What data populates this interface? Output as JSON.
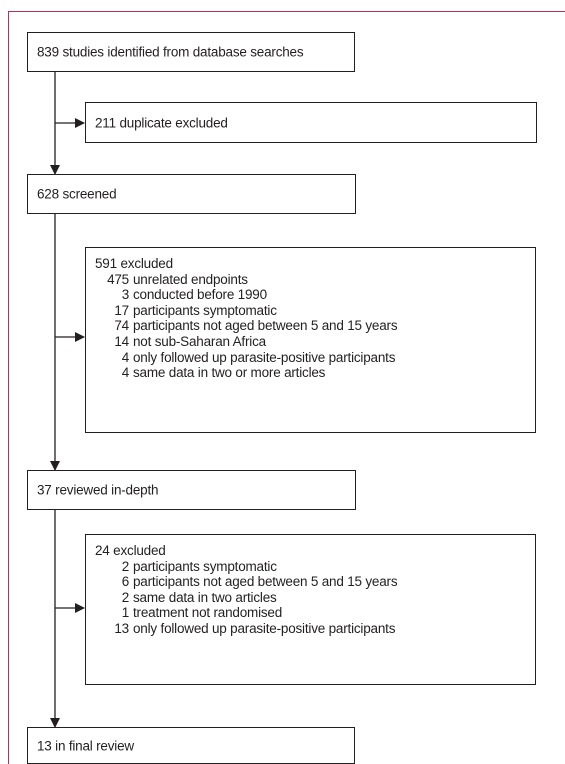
{
  "identified": "839 studies identified from database searches",
  "duplicates": "211 duplicate excluded",
  "screened": "628 screened",
  "excluded1": {
    "header": "591 excluded",
    "items": [
      {
        "n": "475",
        "text": "unrelated endpoints"
      },
      {
        "n": "3",
        "text": "conducted before 1990"
      },
      {
        "n": "17",
        "text": "participants symptomatic"
      },
      {
        "n": "74",
        "text": "participants not aged between 5 and 15 years"
      },
      {
        "n": "14",
        "text": "not sub-Saharan Africa"
      },
      {
        "n": "4",
        "text": "only followed up parasite-positive participants"
      },
      {
        "n": "4",
        "text": "same data in two or more articles"
      }
    ]
  },
  "reviewed": "37 reviewed in-depth",
  "excluded2": {
    "header": "24 excluded",
    "items": [
      {
        "n": "2",
        "text": "participants symptomatic"
      },
      {
        "n": "6",
        "text": "participants not aged between 5 and 15 years"
      },
      {
        "n": "2",
        "text": "same data in two articles"
      },
      {
        "n": "1",
        "text": "treatment not randomised"
      },
      {
        "n": "13",
        "text": "only followed up parasite-positive participants"
      }
    ]
  },
  "final": "13 in final review"
}
